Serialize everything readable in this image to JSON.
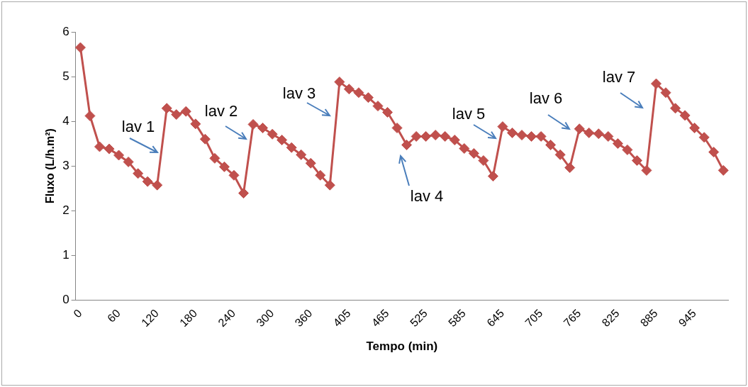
{
  "chart_data": {
    "type": "line",
    "xlabel": "Tempo (min)",
    "ylabel": "Fluxo (L/h.m²)",
    "categories": [
      "0",
      null,
      null,
      null,
      "60",
      null,
      null,
      null,
      "120",
      null,
      null,
      null,
      "180",
      null,
      null,
      null,
      "240",
      null,
      null,
      null,
      "300",
      null,
      null,
      null,
      "360",
      null,
      null,
      null,
      "405",
      null,
      null,
      null,
      "465",
      null,
      null,
      null,
      "525",
      null,
      null,
      null,
      "585",
      null,
      null,
      null,
      "645",
      null,
      null,
      null,
      "705",
      null,
      null,
      null,
      "765",
      null,
      null,
      null,
      "825",
      null,
      null,
      null,
      "885",
      null,
      null,
      null,
      "945",
      null,
      null,
      null
    ],
    "series": [
      {
        "color": "#c0504d",
        "values": [
          5.65,
          4.12,
          3.43,
          3.38,
          3.24,
          3.09,
          2.83,
          2.65,
          2.57,
          4.29,
          4.15,
          4.22,
          3.94,
          3.6,
          3.17,
          2.98,
          2.79,
          2.39,
          3.93,
          3.85,
          3.71,
          3.58,
          3.41,
          3.25,
          3.06,
          2.79,
          2.57,
          4.88,
          4.72,
          4.64,
          4.53,
          4.34,
          4.2,
          3.85,
          3.47,
          3.66,
          3.66,
          3.69,
          3.66,
          3.58,
          3.39,
          3.28,
          3.12,
          2.77,
          3.88,
          3.74,
          3.69,
          3.66,
          3.66,
          3.47,
          3.25,
          2.96,
          3.83,
          3.74,
          3.72,
          3.66,
          3.5,
          3.36,
          3.12,
          2.9,
          4.84,
          4.64,
          4.29,
          4.13,
          3.85,
          3.64,
          3.31,
          2.9
        ]
      }
    ],
    "ylim": [
      0,
      6
    ],
    "yticks": [
      0,
      1,
      2,
      3,
      4,
      5,
      6
    ],
    "grid": false,
    "legend": false,
    "marker": "diamond",
    "line_style": "solid",
    "annotations": [
      "lav 1",
      "lav 2",
      "lav 3",
      "lav 4",
      "lav 5",
      "lav 6",
      "lav 7"
    ]
  }
}
